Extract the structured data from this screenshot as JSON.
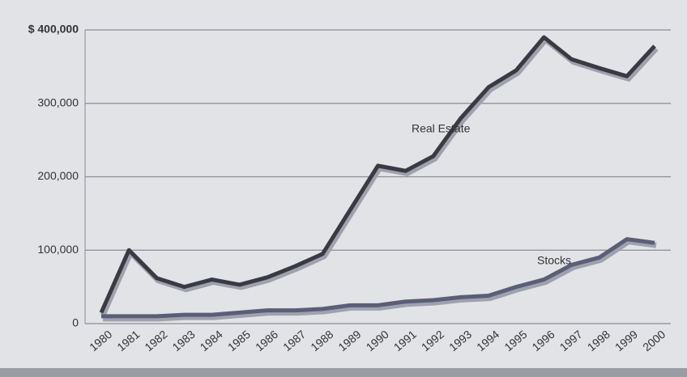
{
  "chart_data": {
    "type": "line",
    "x": [
      1980,
      1981,
      1982,
      1983,
      1984,
      1985,
      1986,
      1987,
      1988,
      1989,
      1990,
      1991,
      1992,
      1993,
      1994,
      1995,
      1996,
      1997,
      1998,
      1999,
      2000
    ],
    "series": [
      {
        "name": "Real Estate",
        "color": "#3a3a44",
        "values": [
          15000,
          100000,
          62000,
          50000,
          60000,
          53000,
          63000,
          78000,
          95000,
          155000,
          215000,
          208000,
          228000,
          280000,
          322000,
          345000,
          390000,
          360000,
          348000,
          337000,
          378000
        ]
      },
      {
        "name": "Stocks",
        "color": "#5a5e78",
        "values": [
          10000,
          10000,
          10000,
          12000,
          12000,
          15000,
          18000,
          18000,
          20000,
          25000,
          25000,
          30000,
          32000,
          36000,
          38000,
          50000,
          60000,
          80000,
          90000,
          115000,
          110000
        ]
      }
    ],
    "xlim": [
      1980,
      2000
    ],
    "ylim": [
      0,
      400000
    ],
    "yticks": [
      0,
      {
        "value": 100000,
        "label": "100,000"
      },
      {
        "value": 200000,
        "label": "200,000"
      },
      {
        "value": 300000,
        "label": "300,000"
      },
      {
        "value": 400000,
        "label": "$ 400,000"
      }
    ],
    "grid": true
  }
}
